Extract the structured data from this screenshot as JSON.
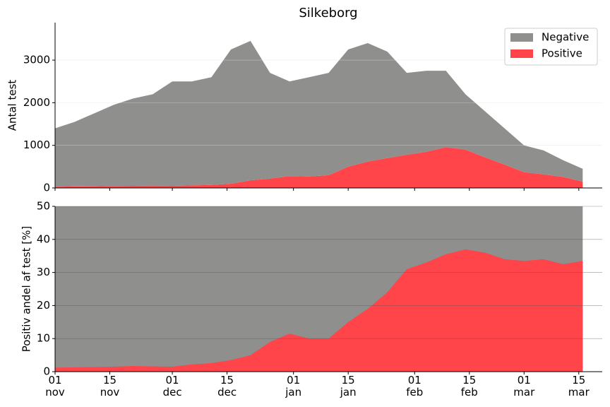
{
  "chart_data": [
    {
      "type": "stacked-area",
      "title": "Silkeborg",
      "ylabel": "Antal test",
      "x": [
        "11-01",
        "11-06",
        "11-11",
        "11-16",
        "11-21",
        "11-26",
        "12-01",
        "12-06",
        "12-11",
        "12-16",
        "12-21",
        "12-26",
        "12-31",
        "01-05",
        "01-10",
        "01-15",
        "01-20",
        "01-25",
        "01-30",
        "02-04",
        "02-09",
        "02-14",
        "02-19",
        "02-24",
        "03-01",
        "03-06",
        "03-11",
        "03-16"
      ],
      "series": [
        {
          "name": "Positive",
          "color": "#ff444a",
          "values": [
            30,
            35,
            40,
            45,
            50,
            55,
            50,
            60,
            70,
            100,
            180,
            220,
            280,
            270,
            300,
            500,
            620,
            700,
            780,
            850,
            960,
            900,
            720,
            550,
            370,
            320,
            260,
            150
          ]
        },
        {
          "name": "Negative",
          "color": "#8f908d",
          "values": [
            1370,
            1515,
            1710,
            1905,
            2050,
            2145,
            2450,
            2440,
            2530,
            3150,
            3270,
            2480,
            2220,
            2330,
            2400,
            2750,
            2780,
            2500,
            1920,
            1900,
            1790,
            1300,
            1080,
            850,
            630,
            560,
            390,
            300
          ]
        }
      ],
      "xlim": [
        "11-01",
        "03-21"
      ],
      "ylim": [
        0,
        3880
      ],
      "yticks": [
        0,
        1000,
        2000,
        3000
      ],
      "grid": true,
      "legend": "upper right"
    },
    {
      "type": "area",
      "ylabel": "Positiv andel af test [%]",
      "color": "#ff444a",
      "background": "#8f908d",
      "x": [
        "11-01",
        "11-06",
        "11-11",
        "11-16",
        "11-21",
        "11-26",
        "12-01",
        "12-06",
        "12-11",
        "12-16",
        "12-21",
        "12-26",
        "12-31",
        "01-05",
        "01-10",
        "01-15",
        "01-20",
        "01-25",
        "01-30",
        "02-04",
        "02-09",
        "02-14",
        "02-19",
        "02-24",
        "03-01",
        "03-06",
        "03-11",
        "03-16"
      ],
      "values": [
        1.2,
        1.3,
        1.4,
        1.5,
        1.7,
        1.6,
        1.5,
        2.2,
        2.6,
        3.5,
        5,
        9,
        11.5,
        10,
        10,
        15,
        19,
        24,
        31,
        33,
        35.5,
        37,
        36,
        34,
        33.5,
        34,
        32.5,
        33.5
      ],
      "xlim": [
        "11-01",
        "03-21"
      ],
      "ylim": [
        0,
        50
      ],
      "yticks": [
        0,
        10,
        20,
        30,
        40,
        50
      ],
      "grid": true,
      "xticks": [
        {
          "value": "11-01",
          "label": "01\nnov"
        },
        {
          "value": "11-15",
          "label": "15\nnov"
        },
        {
          "value": "12-01",
          "label": "01\ndec"
        },
        {
          "value": "12-15",
          "label": "15\ndec"
        },
        {
          "value": "01-01",
          "label": "01\njan"
        },
        {
          "value": "01-15",
          "label": "15\njan"
        },
        {
          "value": "02-01",
          "label": "01\nfeb"
        },
        {
          "value": "02-15",
          "label": "15\nfeb"
        },
        {
          "value": "03-01",
          "label": "01\nmar"
        },
        {
          "value": "03-15",
          "label": "15\nmar"
        }
      ]
    }
  ]
}
